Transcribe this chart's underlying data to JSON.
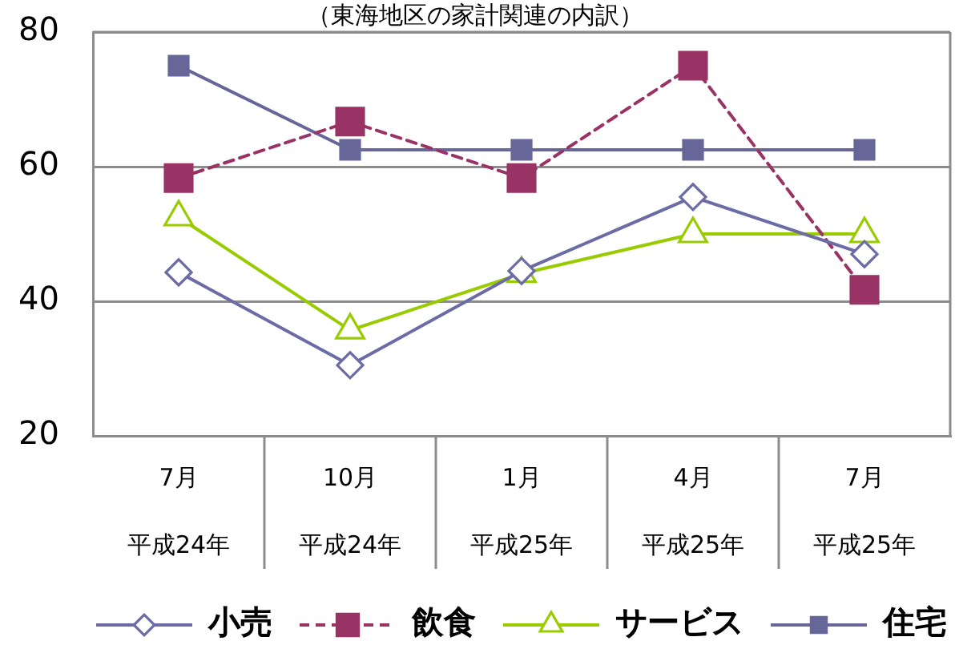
{
  "chart_data": {
    "type": "line",
    "title": "（東海地区の家計関連の内訳）",
    "categories": [
      "7月平成24年",
      "10月平成24年",
      "1月平成25年",
      "4月平成25年",
      "7月平成25年"
    ],
    "series": [
      {
        "name": "小売",
        "color": "#6b6ba6",
        "values": [
          44.3,
          30.5,
          44.5,
          55.5,
          47
        ],
        "marker": "diamond"
      },
      {
        "name": "飲食",
        "color": "#993366",
        "values": [
          58.3,
          66.7,
          58.3,
          75,
          41.7
        ],
        "marker": "square",
        "line_style": "dashed"
      },
      {
        "name": "サービス",
        "color": "#99cc00",
        "values": [
          52.5,
          35.7,
          44.1,
          50,
          50
        ],
        "marker": "triangle"
      },
      {
        "name": "住宅",
        "color": "#666699",
        "values": [
          75,
          62.5,
          62.5,
          62.5,
          62.5
        ],
        "marker": "square"
      }
    ],
    "ylim": [
      20,
      80
    ],
    "yticks": [
      20,
      40,
      60,
      80
    ],
    "grid": "y",
    "legend": "bottom",
    "line_style": "solid"
  }
}
